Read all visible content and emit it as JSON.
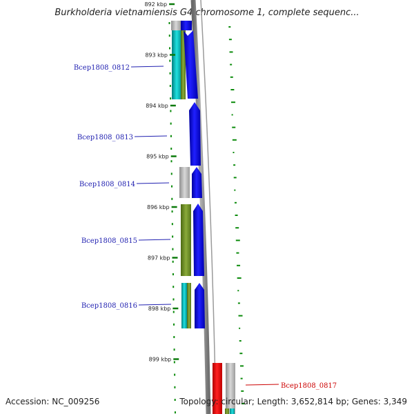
{
  "title": "Burkholderia vietnamiensis G4 chromosome 1, complete sequenc...",
  "footer": {
    "accession": "Accession: NC_009256",
    "topology": "Topology: circular; Length: 3,652,814 bp; Genes: 3,349"
  },
  "ticks": [
    {
      "label": "892 kbp",
      "kbp": 892
    },
    {
      "label": "893 kbp",
      "kbp": 893
    },
    {
      "label": "894 kbp",
      "kbp": 894
    },
    {
      "label": "895 kbp",
      "kbp": 895
    },
    {
      "label": "896 kbp",
      "kbp": 896
    },
    {
      "label": "897 kbp",
      "kbp": 897
    },
    {
      "label": "898 kbp",
      "kbp": 898
    },
    {
      "label": "899 kbp",
      "kbp": 899
    }
  ],
  "genes": [
    {
      "label": "Bcep1808_0812",
      "strand": "-",
      "color": "#1f1fb0"
    },
    {
      "label": "Bcep1808_0813",
      "strand": "-",
      "color": "#1f1fb0"
    },
    {
      "label": "Bcep1808_0814",
      "strand": "-",
      "color": "#1f1fb0"
    },
    {
      "label": "Bcep1808_0815",
      "strand": "-",
      "color": "#1f1fb0"
    },
    {
      "label": "Bcep1808_0816",
      "strand": "-",
      "color": "#1f1fb0"
    },
    {
      "label": "Bcep1808_0817",
      "strand": "+",
      "color": "#cc0000"
    }
  ],
  "colors": {
    "cds_minus": "#0000e6",
    "cds_plus": "#ff0000",
    "backbone": "#808080",
    "gc_skew": "#008000",
    "cog_cyan": "#00c8c8",
    "cog_olive": "#6b8e23",
    "cog_grey": "#b4b4b4"
  }
}
